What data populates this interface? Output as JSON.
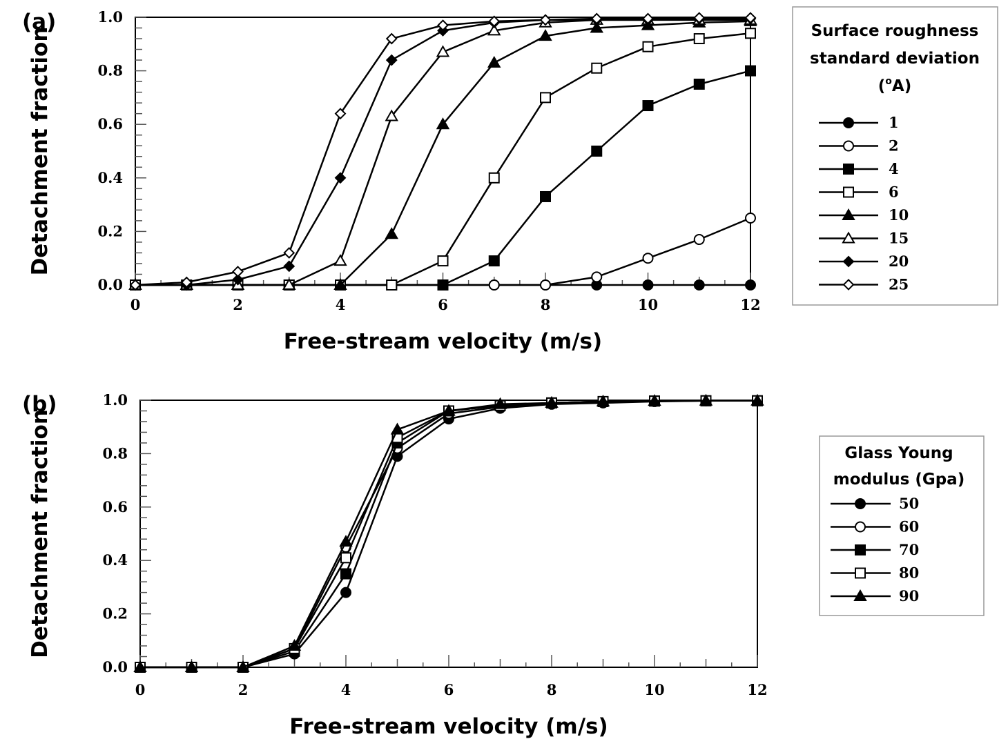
{
  "chart_data": [
    {
      "panel_label": "(a)",
      "type": "line",
      "xlabel": "Free-stream velocity (m/s)",
      "ylabel": "Detachment fraction",
      "xlim": [
        0,
        12
      ],
      "ylim": [
        0,
        1
      ],
      "x_ticks": [
        "0",
        "2",
        "4",
        "6",
        "8",
        "10",
        "12"
      ],
      "y_ticks": [
        "0.0",
        "0.2",
        "0.4",
        "0.6",
        "0.8",
        "1.0"
      ],
      "legend": {
        "title_lines": [
          "Surface roughness",
          "standard deviation"
        ],
        "title_unit_sup": "o",
        "title_unit_text": "A",
        "position": "right"
      },
      "series": [
        {
          "name": "1",
          "marker": "circle-filled",
          "x": [
            0,
            1,
            2,
            3,
            4,
            5,
            6,
            7,
            8,
            9,
            10,
            11,
            12
          ],
          "y": [
            0,
            0,
            0,
            0,
            0,
            0,
            0,
            0,
            0,
            0,
            0,
            0,
            0
          ]
        },
        {
          "name": "2",
          "marker": "circle-open",
          "x": [
            0,
            1,
            2,
            3,
            4,
            5,
            6,
            7,
            8,
            9,
            10,
            11,
            12
          ],
          "y": [
            0,
            0,
            0,
            0,
            0,
            0,
            0,
            0,
            0,
            0.03,
            0.1,
            0.17,
            0.25
          ]
        },
        {
          "name": "4",
          "marker": "square-filled",
          "x": [
            0,
            1,
            2,
            3,
            4,
            5,
            6,
            7,
            8,
            9,
            10,
            11,
            12
          ],
          "y": [
            0,
            0,
            0,
            0,
            0,
            0,
            0,
            0.09,
            0.33,
            0.5,
            0.67,
            0.75,
            0.8
          ]
        },
        {
          "name": "6",
          "marker": "square-open",
          "x": [
            0,
            1,
            2,
            3,
            4,
            5,
            6,
            7,
            8,
            9,
            10,
            11,
            12
          ],
          "y": [
            0,
            0,
            0,
            0,
            0,
            0,
            0.09,
            0.4,
            0.7,
            0.81,
            0.89,
            0.92,
            0.94
          ]
        },
        {
          "name": "10",
          "marker": "triangle-filled",
          "x": [
            0,
            1,
            2,
            3,
            4,
            5,
            6,
            7,
            8,
            9,
            10,
            11,
            12
          ],
          "y": [
            0,
            0,
            0,
            0,
            0,
            0.19,
            0.6,
            0.83,
            0.93,
            0.96,
            0.97,
            0.98,
            0.985
          ]
        },
        {
          "name": "15",
          "marker": "triangle-open",
          "x": [
            0,
            1,
            2,
            3,
            4,
            5,
            6,
            7,
            8,
            9,
            10,
            11,
            12
          ],
          "y": [
            0,
            0,
            0,
            0,
            0.09,
            0.63,
            0.87,
            0.95,
            0.98,
            0.99,
            0.99,
            0.99,
            0.99
          ]
        },
        {
          "name": "20",
          "marker": "diamond-filled",
          "x": [
            0,
            1,
            2,
            3,
            4,
            5,
            6,
            7,
            8,
            9,
            10,
            11,
            12
          ],
          "y": [
            0,
            0,
            0.02,
            0.07,
            0.4,
            0.84,
            0.95,
            0.98,
            0.99,
            0.99,
            0.99,
            0.995,
            0.995
          ]
        },
        {
          "name": "25",
          "marker": "diamond-open",
          "x": [
            0,
            1,
            2,
            3,
            4,
            5,
            6,
            7,
            8,
            9,
            10,
            11,
            12
          ],
          "y": [
            0,
            0.01,
            0.05,
            0.12,
            0.64,
            0.92,
            0.97,
            0.985,
            0.99,
            0.995,
            0.995,
            0.998,
            0.998
          ]
        }
      ]
    },
    {
      "panel_label": "(b)",
      "type": "line",
      "xlabel": "Free-stream velocity (m/s)",
      "ylabel": "Detachment fraction",
      "xlim": [
        0,
        12
      ],
      "ylim": [
        0,
        1
      ],
      "x_ticks": [
        "0",
        "2",
        "4",
        "6",
        "8",
        "10",
        "12"
      ],
      "y_ticks": [
        "0.0",
        "0.2",
        "0.4",
        "0.6",
        "0.8",
        "1.0"
      ],
      "legend": {
        "title_lines": [
          "Glass Young",
          "modulus (Gpa)"
        ],
        "position": "right"
      },
      "series": [
        {
          "name": "50",
          "marker": "circle-filled",
          "x": [
            0,
            1,
            2,
            3,
            4,
            5,
            6,
            7,
            8,
            9,
            10,
            11,
            12
          ],
          "y": [
            0,
            0,
            0,
            0.05,
            0.28,
            0.79,
            0.93,
            0.97,
            0.985,
            0.99,
            0.995,
            0.998,
            0.998
          ]
        },
        {
          "name": "60",
          "marker": "circle-open",
          "x": [
            0,
            1,
            2,
            3,
            4,
            5,
            6,
            7,
            8,
            9,
            10,
            11,
            12
          ],
          "y": [
            0,
            0,
            0,
            0.07,
            0.45,
            0.82,
            0.95,
            0.975,
            0.99,
            0.995,
            0.997,
            0.998,
            0.998
          ]
        },
        {
          "name": "70",
          "marker": "square-filled",
          "x": [
            0,
            1,
            2,
            3,
            4,
            5,
            6,
            7,
            8,
            9,
            10,
            11,
            12
          ],
          "y": [
            0,
            0,
            0,
            0.06,
            0.35,
            0.84,
            0.96,
            0.98,
            0.99,
            0.995,
            0.997,
            0.998,
            0.998
          ]
        },
        {
          "name": "80",
          "marker": "square-open",
          "x": [
            0,
            1,
            2,
            3,
            4,
            5,
            6,
            7,
            8,
            9,
            10,
            11,
            12
          ],
          "y": [
            0,
            0,
            0,
            0.07,
            0.41,
            0.86,
            0.96,
            0.98,
            0.99,
            0.995,
            0.997,
            0.998,
            0.998
          ]
        },
        {
          "name": "90",
          "marker": "triangle-filled",
          "x": [
            0,
            1,
            2,
            3,
            4,
            5,
            6,
            7,
            8,
            9,
            10,
            11,
            12
          ],
          "y": [
            0,
            0,
            0,
            0.08,
            0.47,
            0.89,
            0.96,
            0.985,
            0.99,
            0.995,
            0.997,
            0.998,
            0.998
          ]
        }
      ]
    }
  ]
}
